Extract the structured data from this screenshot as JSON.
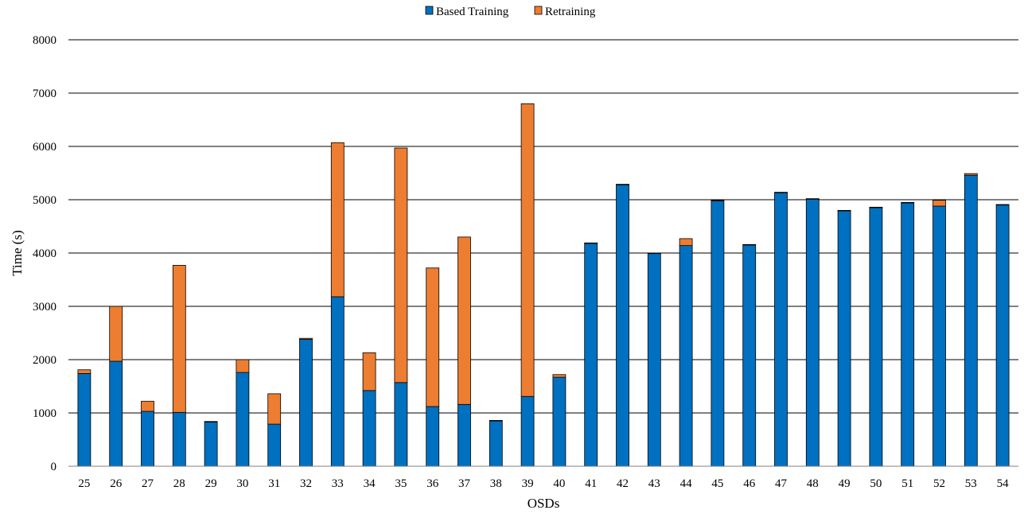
{
  "chart_data": {
    "type": "bar",
    "stacked": true,
    "xlabel": "OSDs",
    "ylabel": "Time (s)",
    "ylim": [
      0,
      8000
    ],
    "yticks": [
      0,
      1000,
      2000,
      3000,
      4000,
      5000,
      6000,
      7000,
      8000
    ],
    "grid": true,
    "legend_position": "top-center",
    "categories": [
      "25",
      "26",
      "27",
      "28",
      "29",
      "30",
      "31",
      "32",
      "33",
      "34",
      "35",
      "36",
      "37",
      "38",
      "39",
      "40",
      "41",
      "42",
      "43",
      "44",
      "45",
      "46",
      "47",
      "48",
      "49",
      "50",
      "51",
      "52",
      "53",
      "54"
    ],
    "series": [
      {
        "name": "Based Training",
        "color": "#0070C0",
        "values": [
          1740,
          1970,
          1030,
          1010,
          830,
          1760,
          790,
          2380,
          3180,
          1420,
          1570,
          1120,
          1160,
          850,
          1310,
          1670,
          4180,
          5280,
          3990,
          4140,
          4980,
          4150,
          5130,
          5010,
          4790,
          4850,
          4940,
          4880,
          5460,
          4900
        ]
      },
      {
        "name": "Retraining",
        "color": "#ED7D31",
        "values": [
          70,
          1030,
          190,
          2760,
          10,
          240,
          570,
          20,
          2890,
          710,
          4400,
          2600,
          3140,
          10,
          5490,
          50,
          10,
          10,
          10,
          130,
          10,
          10,
          10,
          10,
          10,
          10,
          10,
          110,
          30,
          10
        ]
      }
    ]
  }
}
